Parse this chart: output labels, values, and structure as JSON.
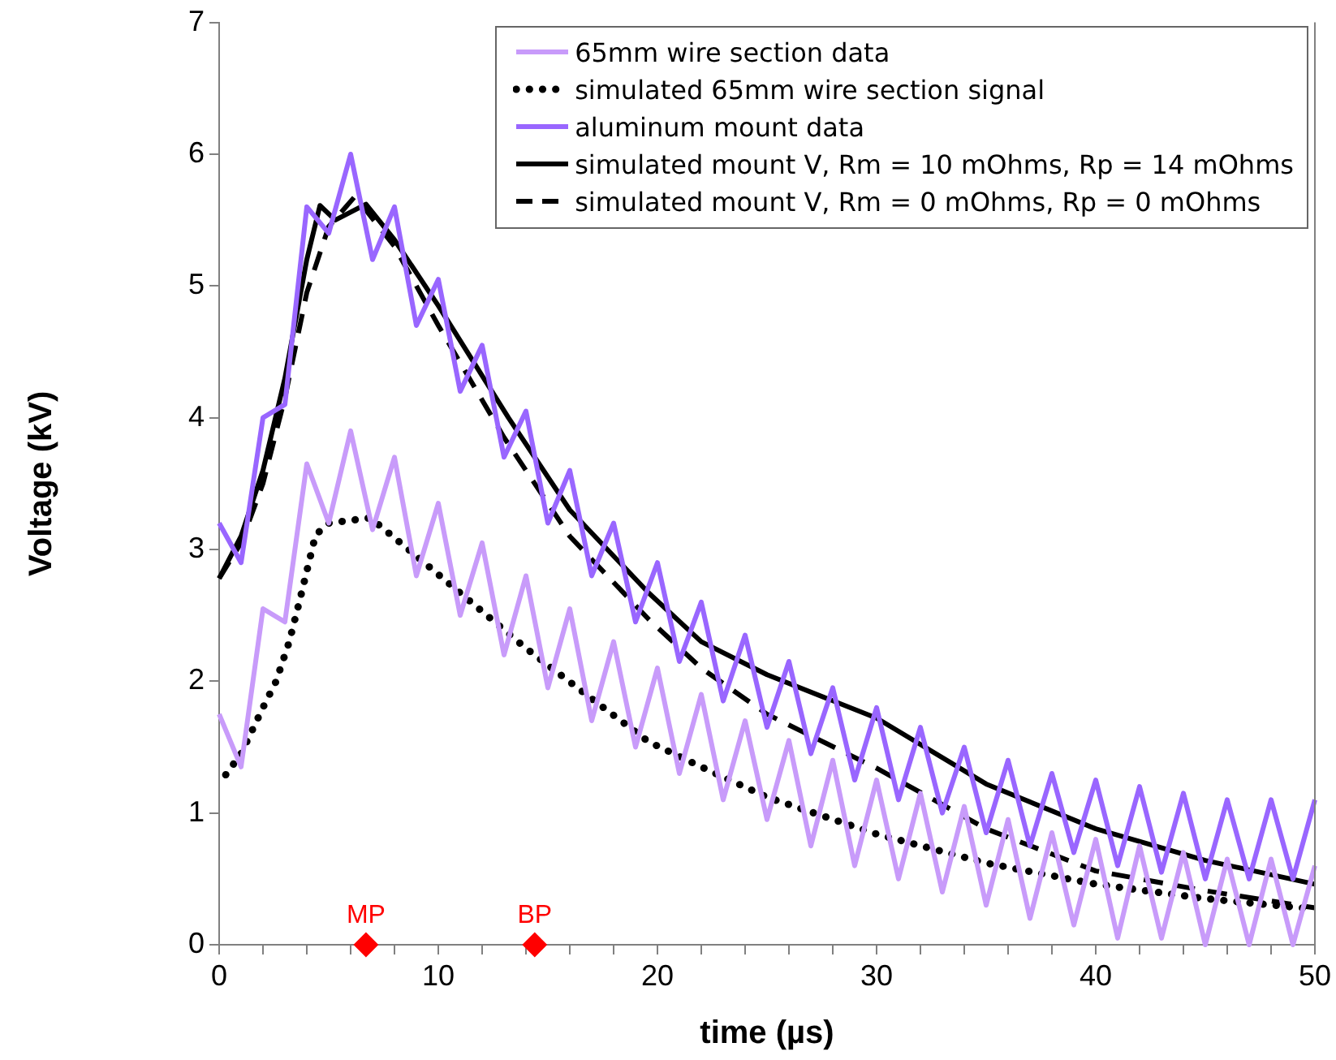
{
  "chart_data": {
    "type": "line",
    "xlabel": "time (µs)",
    "ylabel": "Voltage (kV)",
    "xlim": [
      0,
      50
    ],
    "xticks": [
      0,
      {
        "value": 2,
        "label": null
      },
      {
        "value": 4,
        "label": null
      },
      {
        "value": 6,
        "label": null
      },
      {
        "value": 8,
        "label": null
      },
      10,
      {
        "value": 12,
        "label": null
      },
      {
        "value": 14,
        "label": null
      },
      {
        "value": 16,
        "label": null
      },
      {
        "value": 18,
        "label": null
      },
      20,
      {
        "value": 22,
        "label": null
      },
      {
        "value": 24,
        "label": null
      },
      {
        "value": 26,
        "label": null
      },
      {
        "value": 28,
        "label": null
      },
      30,
      {
        "value": 32,
        "label": null
      },
      {
        "value": 34,
        "label": null
      },
      {
        "value": 36,
        "label": null
      },
      {
        "value": 38,
        "label": null
      },
      40,
      {
        "value": 42,
        "label": null
      },
      {
        "value": 44,
        "label": null
      },
      {
        "value": 46,
        "label": null
      },
      {
        "value": 48,
        "label": null
      },
      50
    ],
    "ylim": [
      0,
      7
    ],
    "yticks": [
      0,
      1,
      2,
      3,
      4,
      5,
      6,
      7
    ],
    "grid": false,
    "legend": "top right",
    "marker": "none",
    "series": [
      {
        "name": "65mm wire section data",
        "color": "#c89bfa",
        "line_style": "solid",
        "x": [
          0,
          1,
          2,
          3,
          4,
          5,
          6,
          7,
          8,
          9,
          10,
          11,
          12,
          13,
          14,
          15,
          16,
          17,
          18,
          19,
          20,
          21,
          22,
          23,
          24,
          25,
          26,
          27,
          28,
          29,
          30,
          31,
          32,
          33,
          34,
          35,
          36,
          37,
          38,
          39,
          40,
          41,
          42,
          43,
          44,
          45,
          46,
          47,
          48,
          49,
          50
        ],
        "values": [
          1.75,
          1.35,
          2.55,
          2.45,
          3.65,
          3.2,
          3.9,
          3.15,
          3.7,
          2.8,
          3.35,
          2.5,
          3.05,
          2.2,
          2.8,
          1.95,
          2.55,
          1.7,
          2.3,
          1.5,
          2.1,
          1.3,
          1.9,
          1.1,
          1.7,
          0.95,
          1.55,
          0.75,
          1.4,
          0.6,
          1.25,
          0.5,
          1.15,
          0.4,
          1.05,
          0.3,
          0.95,
          0.2,
          0.85,
          0.15,
          0.8,
          0.05,
          0.75,
          0.05,
          0.7,
          0,
          0.65,
          0,
          0.65,
          0,
          0.6
        ]
      },
      {
        "name": "simulated 65mm wire section signal",
        "color": "#000000",
        "line_style": "dotted",
        "x": [
          0.3,
          1,
          2,
          2.6,
          3.2,
          3.7,
          4.4,
          5,
          6.9,
          9,
          11.5,
          14,
          16.9,
          19.6,
          22,
          25,
          30,
          35,
          40,
          45,
          50
        ],
        "values": [
          1.29,
          1.45,
          1.8,
          2.0,
          2.3,
          2.63,
          3.11,
          3.2,
          3.24,
          2.95,
          2.6,
          2.25,
          1.88,
          1.54,
          1.35,
          1.12,
          0.84,
          0.62,
          0.46,
          0.35,
          0.27
        ]
      },
      {
        "name": "aluminum mount data",
        "color": "#9966ff",
        "line_style": "solid",
        "x": [
          0,
          1,
          2,
          3,
          4,
          5,
          6,
          7,
          8,
          9,
          10,
          11,
          12,
          13,
          14,
          15,
          16,
          17,
          18,
          19,
          20,
          21,
          22,
          23,
          24,
          25,
          26,
          27,
          28,
          29,
          30,
          31,
          32,
          33,
          34,
          35,
          36,
          37,
          38,
          39,
          40,
          41,
          42,
          43,
          44,
          45,
          46,
          47,
          48,
          49,
          50
        ],
        "values": [
          3.2,
          2.9,
          4.0,
          4.1,
          5.6,
          5.4,
          6.0,
          5.2,
          5.6,
          4.7,
          5.05,
          4.2,
          4.55,
          3.7,
          4.05,
          3.2,
          3.6,
          2.8,
          3.2,
          2.45,
          2.9,
          2.15,
          2.6,
          1.85,
          2.35,
          1.65,
          2.15,
          1.45,
          1.95,
          1.25,
          1.8,
          1.1,
          1.65,
          1.0,
          1.5,
          0.85,
          1.4,
          0.75,
          1.3,
          0.7,
          1.25,
          0.6,
          1.2,
          0.55,
          1.15,
          0.5,
          1.1,
          0.5,
          1.1,
          0.5,
          1.1
        ]
      },
      {
        "name": "simulated mount V, Rm = 10 mOhms, Rp = 14 mOhms",
        "color": "#000000",
        "line_style": "solid",
        "x": [
          0,
          1,
          2,
          3,
          4,
          4.6,
          5.3,
          6.7,
          8,
          10,
          13.2,
          16,
          19.6,
          22,
          25,
          30,
          35,
          40,
          45,
          50
        ],
        "values": [
          2.78,
          3.1,
          3.6,
          4.3,
          5.2,
          5.61,
          5.5,
          5.62,
          5.35,
          4.85,
          4.0,
          3.3,
          2.67,
          2.3,
          2.05,
          1.72,
          1.22,
          0.88,
          0.64,
          0.46
        ]
      },
      {
        "name": "simulated mount V, Rm = 0 mOhms, Rp = 0 mOhms",
        "color": "#000000",
        "line_style": "dashed",
        "x": [
          0,
          1,
          2,
          3,
          4,
          5,
          6.2,
          8,
          10,
          13,
          16,
          19.6,
          22,
          25,
          30,
          35,
          40,
          45,
          50
        ],
        "values": [
          2.78,
          3.05,
          3.5,
          4.15,
          4.95,
          5.45,
          5.68,
          5.3,
          4.7,
          3.85,
          3.1,
          2.47,
          2.1,
          1.75,
          1.34,
          0.88,
          0.56,
          0.41,
          0.28
        ]
      },
      {
        "type": "scatter",
        "marker": "diamond",
        "color": "#ff0000",
        "x": [
          6.7,
          14.4
        ],
        "values": [
          0,
          0
        ]
      }
    ],
    "annotations": [
      {
        "text": "MP",
        "x": 6.7,
        "y": 0
      },
      {
        "text": "BP",
        "x": 14.4,
        "y": 0
      }
    ]
  }
}
